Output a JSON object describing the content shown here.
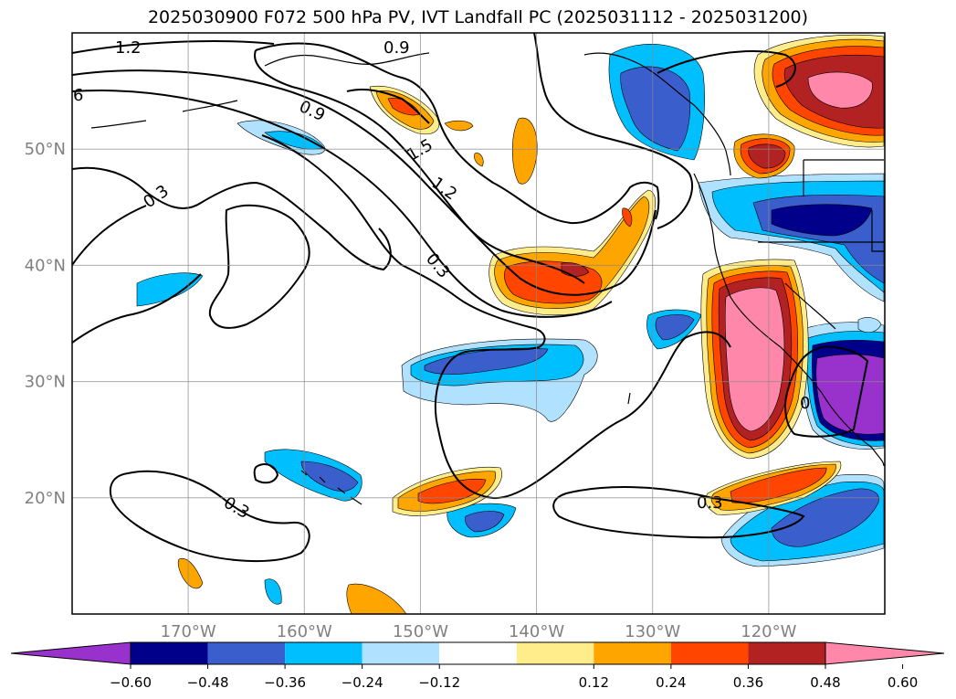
{
  "title": "2025030900 F072 500 hPa PV, IVT Landfall PC (2025031112 - 2025031200)",
  "map": {
    "lon_range": [
      -180,
      -110
    ],
    "lat_range": [
      10,
      60
    ],
    "lon_ticks": [
      {
        "lon": -170,
        "label": "170°W"
      },
      {
        "lon": -160,
        "label": "160°W"
      },
      {
        "lon": -150,
        "label": "150°W"
      },
      {
        "lon": -140,
        "label": "140°W"
      },
      {
        "lon": -130,
        "label": "130°W"
      },
      {
        "lon": -120,
        "label": "120°W"
      }
    ],
    "lat_ticks": [
      {
        "lat": 50,
        "label": "50°N"
      },
      {
        "lat": 40,
        "label": "40°N"
      },
      {
        "lat": 30,
        "label": "30°N"
      },
      {
        "lat": 20,
        "label": "20°N"
      }
    ],
    "gridlines": true,
    "contour_labels": [
      "1.2",
      "0.9",
      "1.5",
      "1.2",
      "0.3",
      "0.3",
      "0.3",
      "0.3",
      "0.9",
      "6",
      "0"
    ]
  },
  "colorbar": {
    "ticks": [
      "−0.60",
      "−0.48",
      "−0.36",
      "−0.24",
      "−0.12",
      "0.12",
      "0.24",
      "0.36",
      "0.48",
      "0.60"
    ],
    "colors": [
      "#9932cc",
      "#00008b",
      "#3a5fcd",
      "#00bfff",
      "#b0e2ff",
      "#ffffff",
      "#ffec8b",
      "#ffa500",
      "#ff4500",
      "#b22222",
      "#ff88aa"
    ],
    "extend": "both"
  }
}
